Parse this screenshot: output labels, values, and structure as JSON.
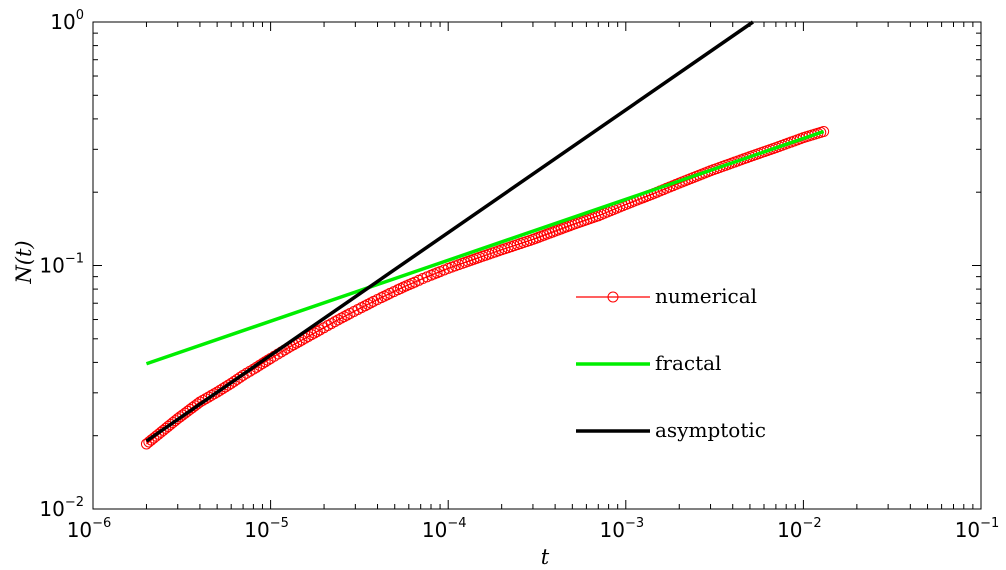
{
  "chart_data": {
    "type": "line",
    "title": "",
    "xlabel": "t",
    "ylabel": "N(t)",
    "xscale": "log",
    "yscale": "log",
    "xlim": [
      1e-06,
      0.1
    ],
    "ylim": [
      0.01,
      1
    ],
    "grid": false,
    "legend_position": "center-right",
    "x_ticks": [
      {
        "base": "10",
        "exp": "−6"
      },
      {
        "base": "10",
        "exp": "−5"
      },
      {
        "base": "10",
        "exp": "−4"
      },
      {
        "base": "10",
        "exp": "−3"
      },
      {
        "base": "10",
        "exp": "−2"
      },
      {
        "base": "10",
        "exp": "−1"
      }
    ],
    "y_ticks": [
      {
        "base": "10",
        "exp": "−2"
      },
      {
        "base": "10",
        "exp": "−1"
      },
      {
        "base": "10",
        "exp": "0"
      }
    ],
    "series": [
      {
        "name": "numerical",
        "color": "#ff0000",
        "marker": "circle",
        "points": [
          [
            2e-06,
            0.0185
          ],
          [
            3e-06,
            0.0235
          ],
          [
            4e-06,
            0.0275
          ],
          [
            5e-06,
            0.0302
          ],
          [
            6e-06,
            0.0328
          ],
          [
            7e-06,
            0.0354
          ],
          [
            8e-06,
            0.0375
          ],
          [
            9e-06,
            0.0396
          ],
          [
            1e-05,
            0.0415
          ],
          [
            1.1e-05,
            0.0433
          ],
          [
            1.2e-05,
            0.045
          ],
          [
            1.3e-05,
            0.0466
          ],
          [
            1.4e-05,
            0.048
          ],
          [
            1.5e-05,
            0.0494
          ],
          [
            1.7e-05,
            0.052
          ],
          [
            1.9e-05,
            0.0544
          ],
          [
            2.1e-05,
            0.0567
          ],
          [
            2.3e-05,
            0.0588
          ],
          [
            2.5e-05,
            0.0608
          ],
          [
            2.8e-05,
            0.0635
          ],
          [
            3.1e-05,
            0.066
          ],
          [
            3.4e-05,
            0.0683
          ],
          [
            3.8e-05,
            0.0712
          ],
          [
            4.2e-05,
            0.0738
          ],
          [
            4.7e-05,
            0.0768
          ],
          [
            5.2e-05,
            0.0795
          ],
          [
            5.8e-05,
            0.0825
          ],
          [
            6.5e-05,
            0.0855
          ],
          [
            7.2e-05,
            0.0884
          ],
          [
            8e-05,
            0.0912
          ],
          [
            9e-05,
            0.0944
          ],
          [
            0.0001,
            0.0973
          ],
          [
            0.00012,
            0.102
          ],
          [
            0.00015,
            0.108
          ],
          [
            0.0002,
            0.116
          ],
          [
            0.0003,
            0.128
          ],
          [
            0.0005,
            0.147
          ],
          [
            0.0007,
            0.16
          ],
          [
            0.001,
            0.178
          ],
          [
            0.0015,
            0.2
          ],
          [
            0.002,
            0.218
          ],
          [
            0.003,
            0.245
          ],
          [
            0.005,
            0.28
          ],
          [
            0.007,
            0.305
          ],
          [
            0.01,
            0.335
          ],
          [
            0.013,
            0.355
          ]
        ]
      },
      {
        "name": "fractal",
        "color": "#00ee00",
        "points": [
          [
            2e-06,
            0.0395
          ],
          [
            0.013,
            0.355
          ]
        ]
      },
      {
        "name": "asymptotic",
        "color": "#000000",
        "points": [
          [
            2e-06,
            0.019
          ],
          [
            0.0052,
            1.0
          ]
        ]
      }
    ]
  }
}
